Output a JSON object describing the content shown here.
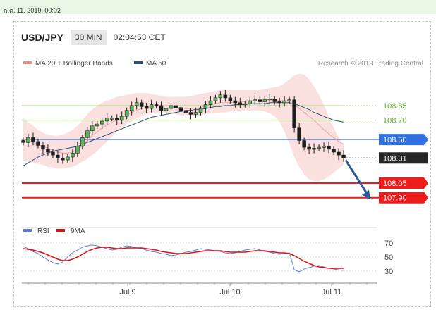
{
  "top_bar": {
    "date_text": "ก.ค. 11, 2019, 00:02"
  },
  "header": {
    "symbol": "USD/JPY",
    "timeframe": "30 MIN",
    "time": "02:04:53 CET"
  },
  "legend": {
    "items": [
      {
        "label": "MA 20 + Bollinger Bands",
        "color": "#f08a8a"
      },
      {
        "label": "MA 50",
        "color": "#2d4f7c"
      }
    ],
    "credit": "Research © 2019 Trading Central"
  },
  "chart_data": [
    {
      "type": "line",
      "panel": "price",
      "ylim": [
        107.6,
        109.3
      ],
      "x_ticks": [
        "Jul 9",
        "Jul 10",
        "Jul 11"
      ],
      "levels": [
        {
          "value": 108.85,
          "label": "108.85",
          "style": "green-line"
        },
        {
          "value": 108.7,
          "label": "108.70",
          "style": "green-line"
        },
        {
          "value": 108.5,
          "label": "108.50",
          "style": "blue-line"
        },
        {
          "value": 108.31,
          "label": "108.31",
          "style": "current-price"
        },
        {
          "value": 108.05,
          "label": "108.05",
          "style": "red-line"
        },
        {
          "value": 107.9,
          "label": "107.90",
          "style": "red-line"
        }
      ],
      "series": [
        {
          "name": "Price",
          "values": [
            108.47,
            108.52,
            108.48,
            108.44,
            108.4,
            108.37,
            108.34,
            108.31,
            108.29,
            108.32,
            108.36,
            108.43,
            108.52,
            108.59,
            108.64,
            108.66,
            108.69,
            108.72,
            108.72,
            108.7,
            108.74,
            108.8,
            108.85,
            108.88,
            108.84,
            108.82,
            108.86,
            108.85,
            108.8,
            108.82,
            108.85,
            108.83,
            108.8,
            108.78,
            108.76,
            108.78,
            108.82,
            108.86,
            108.9,
            108.93,
            108.96,
            108.93,
            108.9,
            108.88,
            108.86,
            108.87,
            108.9,
            108.91,
            108.89,
            108.91,
            108.92,
            108.89,
            108.88,
            108.9,
            108.91,
            108.62,
            108.49,
            108.42,
            108.4,
            108.41,
            108.42,
            108.43,
            108.4,
            108.37,
            108.34,
            108.31
          ]
        },
        {
          "name": "MA 20",
          "values": [
            108.5,
            108.49,
            108.47,
            108.45,
            108.43,
            108.41,
            108.39,
            108.37,
            108.36,
            108.36,
            108.37,
            108.4,
            108.44,
            108.49,
            108.54,
            108.58,
            108.62,
            108.65,
            108.68,
            108.7,
            108.72,
            108.75,
            108.78,
            108.8,
            108.82,
            108.83,
            108.84,
            108.85,
            108.85,
            108.85,
            108.84,
            108.83,
            108.83,
            108.82,
            108.82,
            108.82,
            108.83,
            108.85,
            108.86,
            108.87,
            108.88,
            108.88,
            108.88,
            108.89,
            108.89,
            108.89,
            108.9,
            108.9,
            108.9,
            108.9,
            108.9,
            108.9,
            108.9,
            108.9,
            108.89,
            108.86,
            108.82,
            108.78,
            108.74,
            108.7,
            108.65,
            108.6,
            108.56,
            108.52,
            108.48,
            108.45
          ]
        },
        {
          "name": "MA 50",
          "values": [
            108.23,
            108.26,
            108.29,
            108.32,
            108.34,
            108.36,
            108.38,
            108.39,
            108.4,
            108.41,
            108.42,
            108.43,
            108.45,
            108.47,
            108.49,
            108.51,
            108.53,
            108.55,
            108.57,
            108.59,
            108.61,
            108.63,
            108.65,
            108.67,
            108.69,
            108.71,
            108.73,
            108.74,
            108.75,
            108.76,
            108.77,
            108.78,
            108.79,
            108.8,
            108.8,
            108.81,
            108.81,
            108.82,
            108.83,
            108.84,
            108.84,
            108.85,
            108.85,
            108.86,
            108.86,
            108.86,
            108.87,
            108.87,
            108.87,
            108.87,
            108.88,
            108.88,
            108.88,
            108.88,
            108.88,
            108.87,
            108.85,
            108.83,
            108.81,
            108.78,
            108.76,
            108.74,
            108.72,
            108.7,
            108.69,
            108.68
          ]
        },
        {
          "name": "Upper Bollinger Band",
          "values": [
            108.72,
            108.68,
            108.64,
            108.6,
            108.57,
            108.55,
            108.54,
            108.54,
            108.55,
            108.57,
            108.6,
            108.64,
            108.7,
            108.76,
            108.81,
            108.85,
            108.88,
            108.9,
            108.92,
            108.94,
            108.95,
            108.96,
            108.97,
            108.98,
            108.98,
            108.98,
            108.97,
            108.96,
            108.95,
            108.94,
            108.94,
            108.94,
            108.94,
            108.94,
            108.95,
            108.96,
            108.97,
            108.98,
            108.99,
            109.0,
            109.01,
            109.01,
            109.01,
            109.01,
            109.01,
            109.01,
            109.01,
            109.01,
            109.01,
            109.02,
            109.03,
            109.04,
            109.05,
            109.08,
            109.12,
            109.16,
            109.18,
            109.17,
            109.12,
            109.05,
            108.96,
            108.86,
            108.74,
            108.62,
            108.52,
            108.45
          ]
        },
        {
          "name": "Lower Bollinger Band",
          "values": [
            108.28,
            108.27,
            108.26,
            108.25,
            108.24,
            108.22,
            108.21,
            108.2,
            108.2,
            108.21,
            108.22,
            108.24,
            108.27,
            108.3,
            108.34,
            108.38,
            108.43,
            108.48,
            108.53,
            108.58,
            108.62,
            108.66,
            108.69,
            108.72,
            108.74,
            108.76,
            108.77,
            108.78,
            108.78,
            108.78,
            108.77,
            108.76,
            108.75,
            108.75,
            108.74,
            108.74,
            108.75,
            108.76,
            108.77,
            108.77,
            108.78,
            108.78,
            108.79,
            108.79,
            108.8,
            108.8,
            108.8,
            108.8,
            108.8,
            108.79,
            108.77,
            108.74,
            108.68,
            108.58,
            108.46,
            108.32,
            108.22,
            108.14,
            108.09,
            108.07,
            108.07,
            108.09,
            108.12,
            108.16,
            108.2,
            108.24
          ]
        }
      ],
      "forecast_arrow": {
        "from": 108.31,
        "to": 107.9
      }
    },
    {
      "type": "line",
      "panel": "rsi",
      "ylim": [
        20,
        78
      ],
      "y_ticks": [
        70,
        50,
        30
      ],
      "series": [
        {
          "name": "RSI",
          "values": [
            65,
            62,
            58,
            55,
            50,
            46,
            42,
            40,
            43,
            50,
            56,
            60,
            64,
            66,
            67,
            66,
            64,
            62,
            60,
            61,
            64,
            66,
            65,
            63,
            62,
            60,
            58,
            57,
            55,
            54,
            52,
            53,
            55,
            57,
            58,
            60,
            62,
            61,
            60,
            59,
            58,
            56,
            55,
            56,
            58,
            60,
            61,
            62,
            60,
            58,
            57,
            55,
            54,
            55,
            56,
            32,
            29,
            33,
            35,
            37,
            38,
            36,
            34,
            33,
            32,
            31
          ]
        },
        {
          "name": "9MA",
          "values": [
            62,
            61,
            60,
            58,
            56,
            53,
            50,
            47,
            45,
            45,
            47,
            50,
            54,
            58,
            61,
            63,
            64,
            64,
            63,
            62,
            62,
            63,
            63,
            63,
            63,
            62,
            61,
            60,
            58,
            57,
            56,
            55,
            55,
            55,
            56,
            57,
            58,
            59,
            59,
            59,
            59,
            58,
            57,
            57,
            57,
            57,
            58,
            59,
            59,
            59,
            58,
            57,
            56,
            56,
            55,
            52,
            48,
            44,
            41,
            38,
            36,
            35,
            34,
            34,
            34,
            34
          ]
        }
      ],
      "legend": [
        {
          "label": "RSI",
          "color": "#5b7fd6"
        },
        {
          "label": "9MA",
          "color": "#e01010"
        }
      ]
    }
  ]
}
